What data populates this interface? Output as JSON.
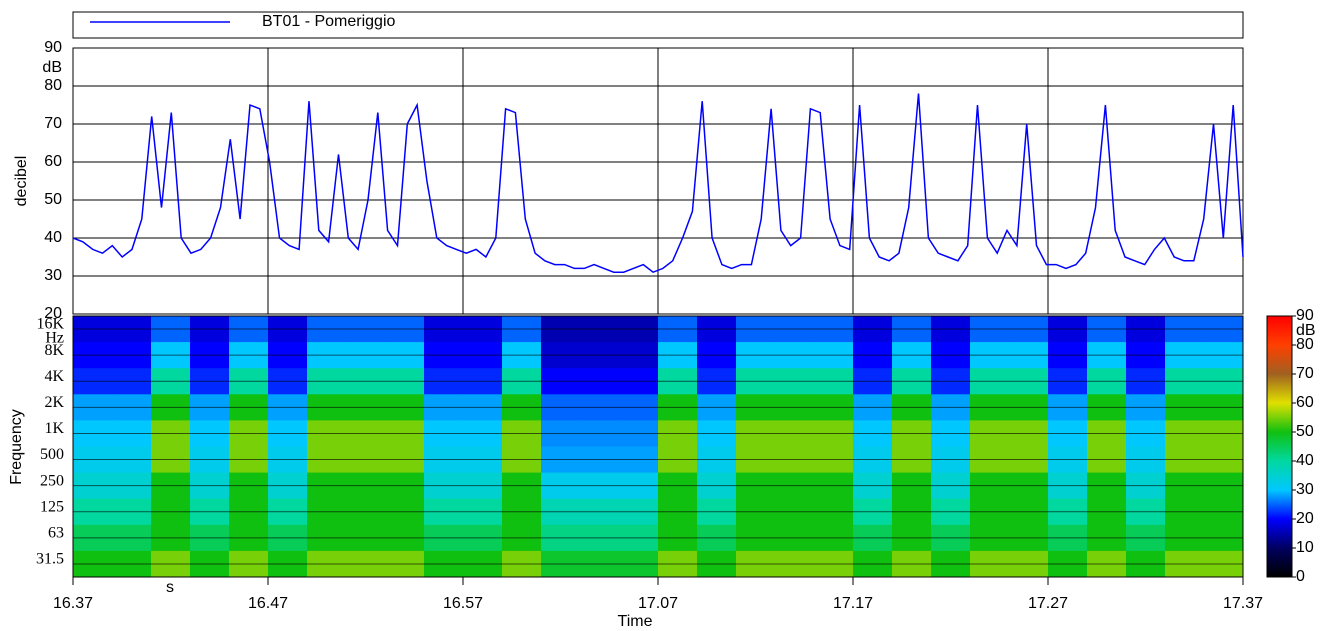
{
  "chart_data": [
    {
      "type": "line",
      "ylabel": "decibel",
      "yunit": "dB",
      "ylim": [
        20,
        90
      ],
      "yticks": [
        20,
        30,
        40,
        50,
        60,
        70,
        80,
        90
      ],
      "xlim": [
        0,
        60
      ],
      "xticks": [
        {
          "value": 0,
          "label": "16.37"
        },
        {
          "value": 10,
          "label": "16.47"
        },
        {
          "value": 20,
          "label": "16.57"
        },
        {
          "value": 30,
          "label": "17.07"
        },
        {
          "value": 40,
          "label": "17.17"
        },
        {
          "value": 50,
          "label": "17.27"
        },
        {
          "value": 60,
          "label": "17.37"
        }
      ],
      "grid": true,
      "series": [
        {
          "name": "BT01 - Pomeriggio",
          "color": "#0000ff",
          "values": [
            40,
            39,
            37,
            36,
            38,
            35,
            37,
            45,
            72,
            48,
            73,
            40,
            36,
            37,
            40,
            48,
            66,
            45,
            75,
            74,
            60,
            40,
            38,
            37,
            76,
            42,
            39,
            62,
            40,
            37,
            50,
            73,
            42,
            38,
            70,
            75,
            55,
            40,
            38,
            37,
            36,
            37,
            35,
            40,
            74,
            73,
            45,
            36,
            34,
            33,
            33,
            32,
            32,
            33,
            32,
            31,
            31,
            32,
            33,
            31,
            32,
            34,
            40,
            47,
            76,
            40,
            33,
            32,
            33,
            33,
            45,
            74,
            42,
            38,
            40,
            74,
            73,
            45,
            38,
            37,
            75,
            40,
            35,
            34,
            36,
            48,
            78,
            40,
            36,
            35,
            34,
            38,
            75,
            40,
            36,
            42,
            38,
            70,
            38,
            33,
            33,
            32,
            33,
            36,
            48,
            75,
            42,
            35,
            34,
            33,
            37,
            40,
            35,
            34,
            34,
            45,
            70,
            40,
            75,
            35
          ]
        }
      ]
    },
    {
      "type": "heatmap",
      "ylabel": "Frequency",
      "yunit": "Hz",
      "xlabel": "Time",
      "xunit": "s",
      "categories": [
        "16K",
        "8K",
        "4K",
        "2K",
        "1K",
        "500",
        "250",
        "125",
        "63",
        "31.5"
      ],
      "zlim": [
        0,
        90
      ],
      "zticks": [
        0,
        10,
        20,
        30,
        40,
        50,
        60,
        70,
        80,
        90
      ],
      "zunit": "dB",
      "colorscale": [
        "#000000",
        "#000060",
        "#0000ff",
        "#00c8ff",
        "#00d8a0",
        "#10c010",
        "#e0e000",
        "#a06020",
        "#ff4000",
        "#ff0000"
      ],
      "z": [
        [
          18,
          18,
          25,
          18,
          25,
          18,
          25,
          25,
          25,
          18,
          18,
          25,
          15,
          15,
          15,
          25,
          18,
          25,
          25,
          25,
          18,
          25,
          18,
          25,
          25,
          18,
          25,
          18,
          25,
          25
        ],
        [
          20,
          20,
          30,
          20,
          30,
          20,
          30,
          30,
          30,
          20,
          20,
          30,
          17,
          17,
          17,
          30,
          20,
          30,
          30,
          30,
          20,
          30,
          20,
          30,
          30,
          20,
          30,
          20,
          30,
          30
        ],
        [
          22,
          22,
          40,
          22,
          40,
          22,
          40,
          40,
          40,
          22,
          22,
          40,
          20,
          20,
          20,
          40,
          22,
          40,
          40,
          40,
          22,
          40,
          22,
          40,
          40,
          22,
          40,
          22,
          40,
          40
        ],
        [
          28,
          28,
          50,
          28,
          50,
          28,
          50,
          50,
          50,
          28,
          28,
          50,
          25,
          25,
          25,
          50,
          28,
          50,
          50,
          50,
          28,
          50,
          28,
          50,
          50,
          28,
          50,
          28,
          50,
          50
        ],
        [
          30,
          30,
          55,
          30,
          55,
          30,
          55,
          55,
          55,
          30,
          30,
          55,
          27,
          27,
          27,
          55,
          30,
          55,
          55,
          55,
          30,
          55,
          30,
          55,
          55,
          30,
          55,
          30,
          55,
          55
        ],
        [
          32,
          32,
          55,
          32,
          55,
          32,
          55,
          55,
          55,
          32,
          32,
          55,
          28,
          28,
          28,
          55,
          32,
          55,
          55,
          55,
          32,
          55,
          32,
          55,
          55,
          32,
          55,
          32,
          55,
          55
        ],
        [
          35,
          35,
          50,
          35,
          50,
          35,
          50,
          50,
          50,
          35,
          35,
          50,
          32,
          32,
          32,
          50,
          35,
          50,
          50,
          50,
          35,
          50,
          35,
          50,
          50,
          35,
          50,
          35,
          50,
          50
        ],
        [
          40,
          40,
          50,
          40,
          50,
          40,
          50,
          50,
          50,
          40,
          40,
          50,
          38,
          38,
          38,
          50,
          40,
          50,
          50,
          50,
          40,
          50,
          40,
          50,
          50,
          40,
          50,
          40,
          50,
          50
        ],
        [
          45,
          45,
          50,
          45,
          50,
          45,
          50,
          50,
          50,
          45,
          45,
          50,
          42,
          42,
          42,
          50,
          45,
          50,
          50,
          50,
          45,
          50,
          45,
          50,
          50,
          45,
          50,
          45,
          50,
          50
        ],
        [
          50,
          50,
          55,
          50,
          55,
          50,
          55,
          55,
          55,
          50,
          50,
          55,
          48,
          48,
          48,
          55,
          50,
          55,
          55,
          55,
          50,
          55,
          50,
          55,
          55,
          50,
          55,
          50,
          55,
          55
        ]
      ]
    }
  ]
}
